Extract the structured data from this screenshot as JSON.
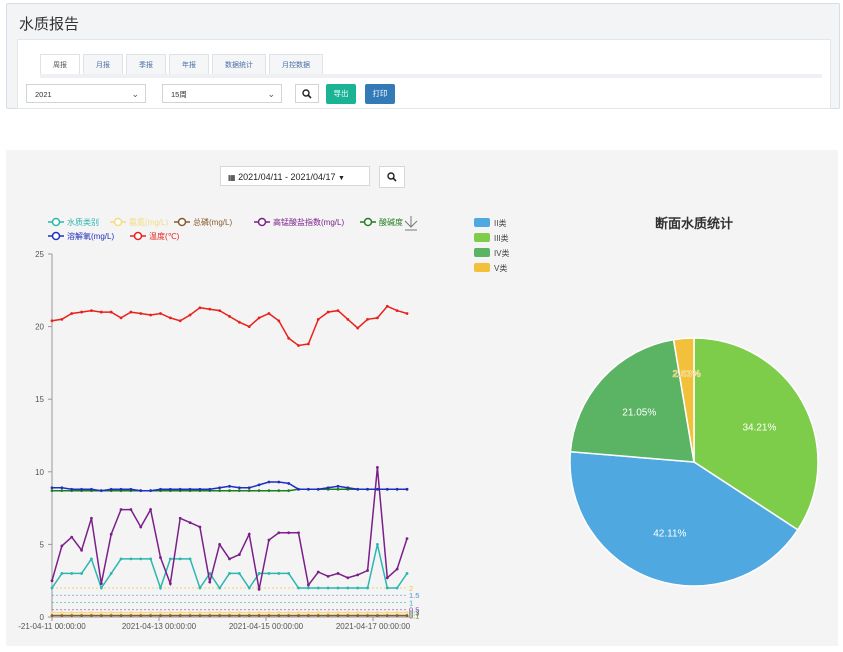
{
  "page": {
    "title": "水质报告"
  },
  "tabs": [
    {
      "label": "周报",
      "active": true
    },
    {
      "label": "月报"
    },
    {
      "label": "季报"
    },
    {
      "label": "年报"
    },
    {
      "label": "数据统计"
    },
    {
      "label": "月控数据"
    }
  ],
  "filters": {
    "year": "2021",
    "week": "15周",
    "export_label": "导出",
    "print_label": "打印"
  },
  "colors": {
    "export": "#1ab394",
    "print": "#337ab7"
  },
  "date_range": {
    "text": "2021/04/11 - 2021/04/17"
  },
  "chart_data": [
    {
      "type": "line",
      "y_range": [
        0,
        25
      ],
      "y_ticks": [
        "0",
        "5",
        "10",
        "15",
        "20",
        "25"
      ],
      "x_tick_labels": [
        "-21-04-11 00:00:00",
        "2021-04-13 00:00:00",
        "2021-04-15 00:00:00",
        "2021-04-17 00:00:00"
      ],
      "ref_labels": [
        {
          "text": "2",
          "value": 2,
          "color": "#f0c24a"
        },
        {
          "text": "1.5",
          "value": 1.5,
          "color": "#4a90d9"
        },
        {
          "text": "1",
          "value": 1,
          "color": "#2cb7b0"
        },
        {
          "text": "0.5",
          "value": 0.5,
          "color": "#8e44ad"
        },
        {
          "text": "0.3",
          "value": 0.3,
          "color": "#2e8b57"
        },
        {
          "text": "0.1",
          "value": 0.1,
          "color": "#8a6d3b"
        }
      ],
      "series": [
        {
          "name": "水质类别",
          "color": "#2cb7b0",
          "values": [
            2,
            3,
            3,
            3,
            4,
            2,
            3,
            4,
            4,
            4,
            4,
            2,
            4,
            4,
            4,
            2,
            3,
            2,
            3,
            3,
            2,
            3,
            3,
            3,
            3,
            2,
            2,
            2,
            2,
            2,
            2,
            2,
            2,
            5,
            2,
            2,
            3
          ]
        },
        {
          "name": "氨氮(mg/L)",
          "color": "#f5dc80",
          "values": [
            0.3,
            0.3,
            0.3,
            0.3,
            0.3,
            0.3,
            0.3,
            0.3,
            0.3,
            0.3,
            0.3,
            0.3,
            0.3,
            0.3,
            0.3,
            0.3,
            0.3,
            0.3,
            0.3,
            0.3,
            0.3,
            0.3,
            0.3,
            0.3,
            0.3,
            0.3,
            0.3,
            0.3,
            0.3,
            0.3,
            0.3,
            0.3,
            0.3,
            0.3,
            0.3,
            0.3,
            0.3
          ]
        },
        {
          "name": "总磷(mg/L)",
          "color": "#8a5a2b",
          "values": [
            0.1,
            0.1,
            0.1,
            0.1,
            0.1,
            0.1,
            0.1,
            0.1,
            0.1,
            0.1,
            0.1,
            0.1,
            0.1,
            0.1,
            0.1,
            0.1,
            0.1,
            0.1,
            0.1,
            0.1,
            0.1,
            0.1,
            0.1,
            0.1,
            0.1,
            0.1,
            0.1,
            0.1,
            0.1,
            0.1,
            0.1,
            0.1,
            0.1,
            0.1,
            0.1,
            0.1,
            0.1
          ]
        },
        {
          "name": "高锰酸盐指数(mg/L)",
          "color": "#7b1f8a",
          "values": [
            2.5,
            4.9,
            5.5,
            4.6,
            6.8,
            2.3,
            5.7,
            7.4,
            7.4,
            6.2,
            7.4,
            4.1,
            2.3,
            6.8,
            6.5,
            6.2,
            2.4,
            5.0,
            4.0,
            4.3,
            5.7,
            1.9,
            5.3,
            5.8,
            5.8,
            5.8,
            2.2,
            3.1,
            2.8,
            3.0,
            2.7,
            2.9,
            3.2,
            10.3,
            2.7,
            3.3,
            5.4
          ]
        },
        {
          "name": "酸碱度",
          "color": "#1e7d1e",
          "values": [
            8.7,
            8.7,
            8.7,
            8.7,
            8.7,
            8.7,
            8.7,
            8.7,
            8.7,
            8.7,
            8.7,
            8.7,
            8.7,
            8.7,
            8.7,
            8.7,
            8.7,
            8.7,
            8.7,
            8.7,
            8.7,
            8.7,
            8.7,
            8.7,
            8.7,
            8.8,
            8.8,
            8.8,
            8.8,
            8.8,
            8.8,
            8.8,
            8.8,
            8.8,
            8.8,
            8.8,
            8.8
          ]
        },
        {
          "name": "溶解氧(mg/L)",
          "color": "#1f2fbf",
          "values": [
            8.9,
            8.9,
            8.8,
            8.8,
            8.8,
            8.7,
            8.8,
            8.8,
            8.8,
            8.7,
            8.7,
            8.8,
            8.8,
            8.8,
            8.8,
            8.8,
            8.8,
            8.9,
            9.0,
            8.9,
            8.9,
            9.1,
            9.3,
            9.3,
            9.2,
            8.8,
            8.8,
            8.8,
            8.9,
            9.0,
            8.9,
            8.8,
            8.8,
            8.8,
            8.8,
            8.8,
            8.8
          ]
        },
        {
          "name": "温度(℃)",
          "color": "#e8221a",
          "values": [
            20.4,
            20.5,
            20.9,
            21.0,
            21.1,
            21.0,
            21.0,
            20.6,
            21.0,
            20.9,
            20.8,
            20.9,
            20.6,
            20.4,
            20.8,
            21.3,
            21.2,
            21.1,
            20.7,
            20.3,
            20.0,
            20.6,
            20.9,
            20.4,
            19.2,
            18.7,
            18.8,
            20.5,
            21.0,
            21.1,
            20.5,
            19.9,
            20.5,
            20.6,
            21.4,
            21.1,
            20.9
          ]
        }
      ]
    },
    {
      "type": "pie",
      "title": "断面水质统计",
      "slices": [
        {
          "name": "II类",
          "value": 42.11,
          "label": "42.11%",
          "color": "#4fa8e0"
        },
        {
          "name": "III类",
          "value": 34.21,
          "label": "34.21%",
          "color": "#7dcd4a"
        },
        {
          "name": "IV类",
          "value": 21.05,
          "label": "21.05%",
          "color": "#5ab463"
        },
        {
          "name": "V类",
          "value": 2.63,
          "label": "2.63%",
          "color": "#f3c03c"
        }
      ]
    }
  ]
}
